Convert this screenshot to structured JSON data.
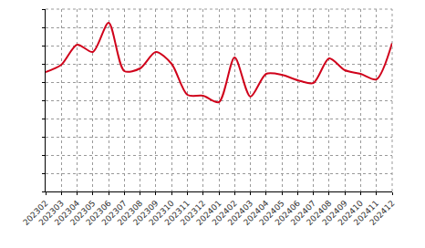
{
  "chart_data": {
    "type": "line",
    "categories": [
      "202302",
      "202303",
      "202304",
      "202305",
      "202306",
      "202307",
      "202308",
      "202309",
      "202310",
      "202311",
      "202312",
      "202401",
      "202402",
      "202403",
      "202404",
      "202405",
      "202406",
      "202407",
      "202408",
      "202409",
      "202410",
      "202411",
      "202412"
    ],
    "values": [
      6.55,
      6.95,
      8.05,
      7.65,
      9.25,
      6.6,
      6.75,
      7.65,
      7.0,
      5.3,
      5.25,
      4.9,
      7.35,
      5.2,
      6.45,
      6.4,
      6.1,
      5.95,
      7.3,
      6.65,
      6.45,
      6.15,
      8.15
    ],
    "color": "#d0021b",
    "ylim": [
      0,
      10
    ],
    "yticks": [
      0,
      1,
      2,
      3,
      4,
      5,
      6,
      7,
      8,
      9,
      10
    ],
    "grid": true,
    "tick_labels": "x",
    "line_style": "spline"
  }
}
